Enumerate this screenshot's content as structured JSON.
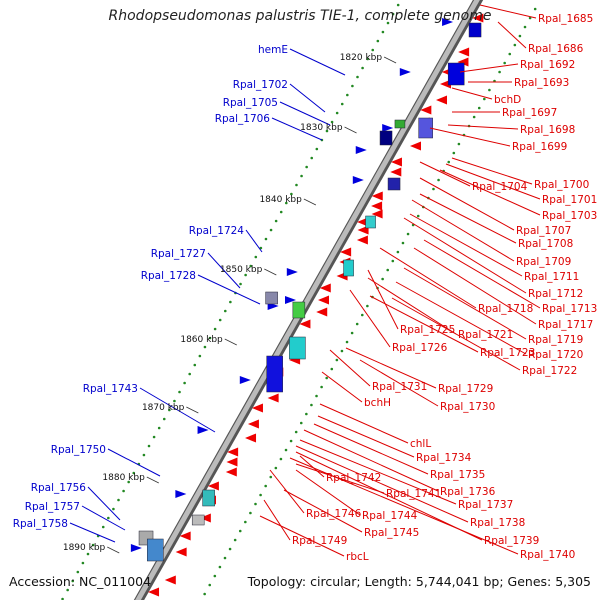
{
  "title": "Rhodopseudomonas palustris TIE-1, complete genome",
  "footer": {
    "accession": "Accession: NC_011004",
    "topology": "Topology: circular; Length: 5,744,041 bp; Genes: 5,305"
  },
  "colors": {
    "forward_gene": "#0000dd",
    "reverse_gene": "#ee0000",
    "left_label": "#0000cc",
    "right_label": "#dd0000",
    "backbone": "#888888",
    "gc_dots": "#228822"
  },
  "kbp_ticks": [
    "1820 kbp",
    "1830 kbp",
    "1840 kbp",
    "1850 kbp",
    "1860 kbp",
    "1870 kbp",
    "1880 kbp",
    "1890 kbp"
  ],
  "left_labels": [
    "hemE",
    "Rpal_1702",
    "Rpal_1705",
    "Rpal_1706",
    "Rpal_1724",
    "Rpal_1727",
    "Rpal_1728",
    "Rpal_1743",
    "Rpal_1750",
    "Rpal_1756",
    "Rpal_1757",
    "Rpal_1758"
  ],
  "right_labels": [
    "Rpal_1685",
    "Rpal_1686",
    "Rpal_1692",
    "Rpal_1693",
    "bchD",
    "Rpal_1697",
    "Rpal_1698",
    "Rpal_1699",
    "Rpal_1704",
    "Rpal_1700",
    "Rpal_1701",
    "Rpal_1703",
    "Rpal_1707",
    "Rpal_1708",
    "Rpal_1709",
    "Rpal_1711",
    "Rpal_1712",
    "Rpal_1718",
    "Rpal_1713",
    "Rpal_1717",
    "Rpal_1725",
    "Rpal_1721",
    "Rpal_1719",
    "Rpal_1726",
    "Rpal_1723",
    "Rpal_1720",
    "Rpal_1722",
    "Rpal_1731",
    "Rpal_1729",
    "bchH",
    "Rpal_1730",
    "chlL",
    "Rpal_1734",
    "Rpal_1735",
    "Rpal_1742",
    "Rpal_1736",
    "Rpal_1741",
    "Rpal_1737",
    "Rpal_1746",
    "Rpal_1744",
    "Rpal_1738",
    "Rpal_1745",
    "Rpal_1739",
    "Rpal_1749",
    "Rpal_1740",
    "rbcL"
  ]
}
